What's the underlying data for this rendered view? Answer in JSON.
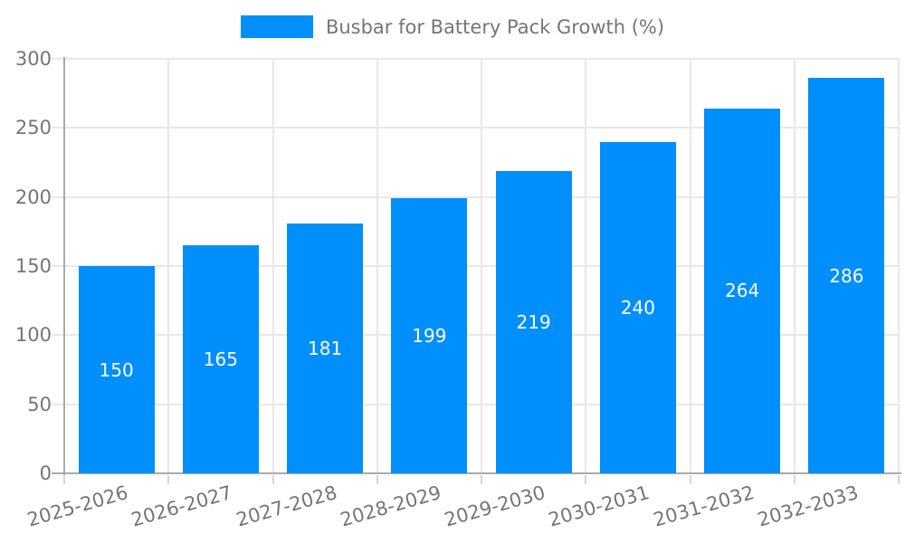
{
  "chart_data": {
    "type": "bar",
    "title": "Busbar for Battery Pack Growth (%)",
    "categories": [
      "2025-2026",
      "2026-2027",
      "2027-2028",
      "2028-2029",
      "2029-2030",
      "2030-2031",
      "2031-2032",
      "2032-2033"
    ],
    "values": [
      150,
      165,
      181,
      199,
      219,
      240,
      264,
      286
    ],
    "xlabel": "",
    "ylabel": "",
    "ylim": [
      0,
      300
    ],
    "yticks": [
      0,
      50,
      100,
      150,
      200,
      250,
      300
    ],
    "grid": true,
    "legend_position": "top",
    "bar_color": "#008FFB",
    "value_label_color": "#FFFFFF",
    "axis_text_color": "#757575",
    "axis_line_color": "#AAAAAA",
    "gridline_color": "#E8E8E8"
  }
}
